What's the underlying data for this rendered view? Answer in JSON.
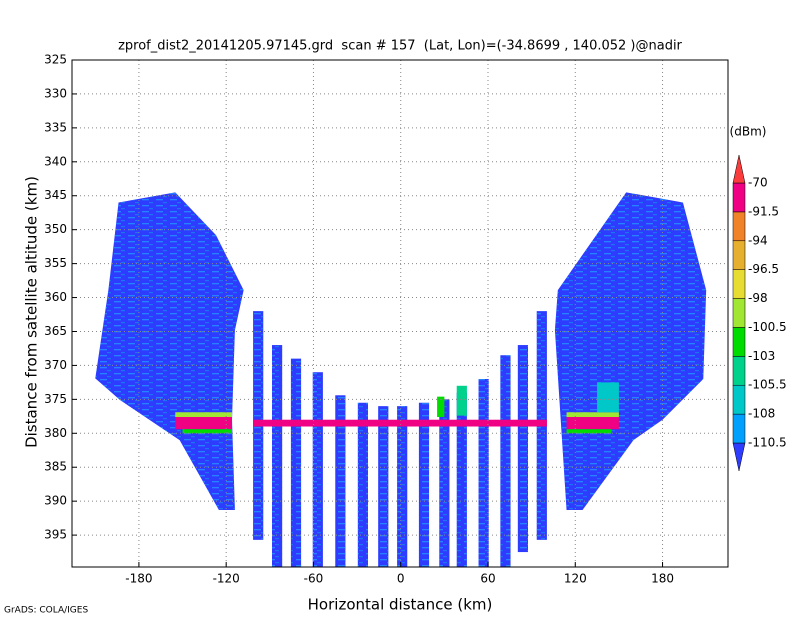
{
  "chart_data": {
    "type": "swath-profile",
    "title": "zprof_dist2_20141205.97145.grd  scan # 157  (Lat, Lon)=(-34.8699 , 140.052 )@nadir",
    "xlabel": "Horizontal distance (km)",
    "ylabel": "Distance from satellite altitude (km)",
    "footer": "GrADS: COLA/IGES",
    "xlim": [
      -226,
      225
    ],
    "ylim": [
      325,
      399.7
    ],
    "y_inverted": true,
    "xticks": [
      -180,
      -120,
      -60,
      0,
      60,
      120,
      180
    ],
    "yticks": [
      325,
      330,
      335,
      340,
      345,
      350,
      355,
      360,
      365,
      370,
      375,
      380,
      385,
      390,
      395
    ],
    "grid": true,
    "colorbar": {
      "label": "(dBm)",
      "levels": [
        -110.5,
        -108,
        -105.5,
        -103,
        -100.5,
        -98,
        -96.5,
        -94,
        -91.5,
        -70
      ],
      "colors": [
        "#2d3cff",
        "#00a0ff",
        "#00c8c8",
        "#00d28c",
        "#00dc00",
        "#a0e632",
        "#e6dc32",
        "#e6af2d",
        "#f08228",
        "#f00082",
        "#fa3c3c"
      ]
    },
    "swaths": [
      {
        "x": [
          -194,
          -155,
          -127,
          -108,
          -114,
          -116,
          -114,
          -125,
          -152,
          -193,
          -210,
          -201
        ],
        "y": [
          346,
          344.5,
          350.8,
          358.9,
          364.8,
          378,
          391.3,
          391.3,
          381,
          375.1,
          371.9,
          358.9
        ],
        "value": -112
      },
      {
        "x": [
          108,
          155,
          194,
          210,
          208,
          180,
          160,
          125,
          114,
          106
        ],
        "y": [
          358.9,
          344.5,
          346,
          358.9,
          372,
          378,
          381,
          391.3,
          391.3,
          364.8
        ],
        "value": -112
      }
    ],
    "cells": [
      {
        "x": [
          -101.5,
          -94.5
        ],
        "y": [
          362,
          395.7
        ],
        "value": -112
      },
      {
        "x": [
          -88.5,
          -81.5
        ],
        "y": [
          367,
          399.7
        ],
        "value": -112
      },
      {
        "x": [
          -75.5,
          -68.5
        ],
        "y": [
          369,
          399.7
        ],
        "value": -112
      },
      {
        "x": [
          -60.5,
          -53.5
        ],
        "y": [
          371,
          399.7
        ],
        "value": -112
      },
      {
        "x": [
          -45,
          -38
        ],
        "y": [
          374.4,
          399.7
        ],
        "value": -112
      },
      {
        "x": [
          -29.5,
          -22.5
        ],
        "y": [
          375.5,
          399.7
        ],
        "value": -112
      },
      {
        "x": [
          -15.5,
          -8.5
        ],
        "y": [
          376,
          399.7
        ],
        "value": -112
      },
      {
        "x": [
          -2.5,
          4.5
        ],
        "y": [
          376,
          399.7
        ],
        "value": -112
      },
      {
        "x": [
          12.5,
          19.5
        ],
        "y": [
          375.5,
          399.7
        ],
        "value": -112
      },
      {
        "x": [
          26.5,
          33.5
        ],
        "y": [
          375,
          399.7
        ],
        "value": -112
      },
      {
        "x": [
          38.5,
          45.5
        ],
        "y": [
          374,
          399.7
        ],
        "value": -112
      },
      {
        "x": [
          53.5,
          60.5
        ],
        "y": [
          372,
          399.7
        ],
        "value": -112
      },
      {
        "x": [
          68.5,
          75.5
        ],
        "y": [
          368.5,
          399.7
        ],
        "value": -112
      },
      {
        "x": [
          80.5,
          87.5
        ],
        "y": [
          367,
          397.5
        ],
        "value": -112
      },
      {
        "x": [
          93.5,
          100.5
        ],
        "y": [
          362,
          395.7
        ],
        "value": -112
      },
      {
        "x": [
          -155,
          -116
        ],
        "y": [
          376.9,
          377.6
        ],
        "value": -99
      },
      {
        "x": [
          -155,
          -116
        ],
        "y": [
          377.6,
          379.4
        ],
        "value": -85
      },
      {
        "x": [
          -150,
          -116
        ],
        "y": [
          379.4,
          380
        ],
        "value": -101
      },
      {
        "x": [
          114,
          150
        ],
        "y": [
          376.9,
          377.6
        ],
        "value": -99
      },
      {
        "x": [
          114,
          150
        ],
        "y": [
          377.6,
          379.4
        ],
        "value": -85
      },
      {
        "x": [
          114,
          145
        ],
        "y": [
          379.4,
          380
        ],
        "value": -101
      },
      {
        "x": [
          135,
          150
        ],
        "y": [
          372.5,
          376.9
        ],
        "value": -107
      },
      {
        "x": [
          25,
          30
        ],
        "y": [
          374.6,
          377.6
        ],
        "value": -102
      },
      {
        "x": [
          38.5,
          45.5
        ],
        "y": [
          373,
          377.4
        ],
        "value": -104
      },
      {
        "x": [
          -101.5,
          100.5
        ],
        "y": [
          378,
          379
        ],
        "value": -85
      }
    ]
  }
}
